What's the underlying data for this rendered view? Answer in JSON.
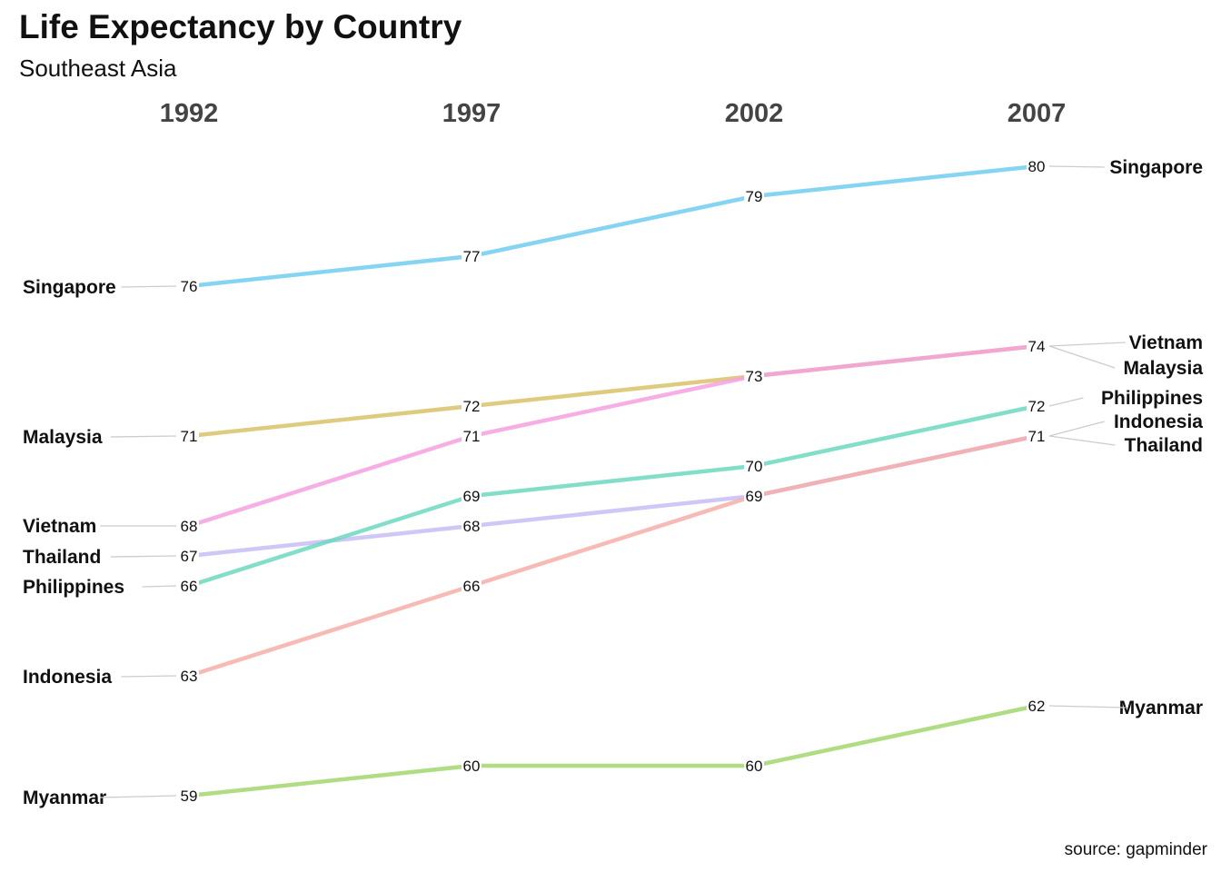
{
  "chart_data": {
    "type": "line",
    "title": "Life Expectancy by Country",
    "subtitle": "Southeast Asia",
    "caption": "source: gapminder",
    "x": [
      "1992",
      "1997",
      "2002",
      "2007"
    ],
    "series": [
      {
        "name": "Singapore",
        "values": [
          76,
          77,
          79,
          80
        ],
        "color": "#6fcdf0",
        "labels": [
          "76",
          "77",
          "79",
          "80"
        ]
      },
      {
        "name": "Malaysia",
        "values": [
          71,
          72,
          73,
          74
        ],
        "color": "#d9c26a",
        "labels": [
          "71",
          "72",
          "73",
          "74"
        ]
      },
      {
        "name": "Vietnam",
        "values": [
          68,
          71,
          73,
          74
        ],
        "color": "#f6a0e0",
        "labels": [
          "68",
          "71",
          "73",
          "74"
        ]
      },
      {
        "name": "Thailand",
        "values": [
          67,
          68,
          69,
          71
        ],
        "color": "#c8bdf6",
        "labels": [
          "67",
          "68",
          "69",
          "71"
        ]
      },
      {
        "name": "Philippines",
        "values": [
          66,
          69,
          70,
          72
        ],
        "color": "#6dd8c0",
        "labels": [
          "66",
          "69",
          "70",
          "72"
        ]
      },
      {
        "name": "Indonesia",
        "values": [
          63,
          66,
          69,
          71
        ],
        "color": "#f6aea8",
        "labels": [
          "63",
          "66",
          "69",
          "71"
        ]
      },
      {
        "name": "Myanmar",
        "values": [
          59,
          60,
          60,
          62
        ],
        "color": "#a2d66e",
        "labels": [
          "59",
          "60",
          "60",
          "62"
        ]
      }
    ],
    "left_label_order": [
      "Singapore",
      "Malaysia",
      "Vietnam",
      "Thailand",
      "Philippines",
      "Indonesia",
      "Myanmar"
    ],
    "right_label_order": [
      "Singapore",
      "Vietnam",
      "Malaysia",
      "Philippines",
      "Indonesia",
      "Thailand",
      "Myanmar"
    ],
    "ylim": [
      59,
      80
    ],
    "grid": false,
    "legend": "none"
  }
}
